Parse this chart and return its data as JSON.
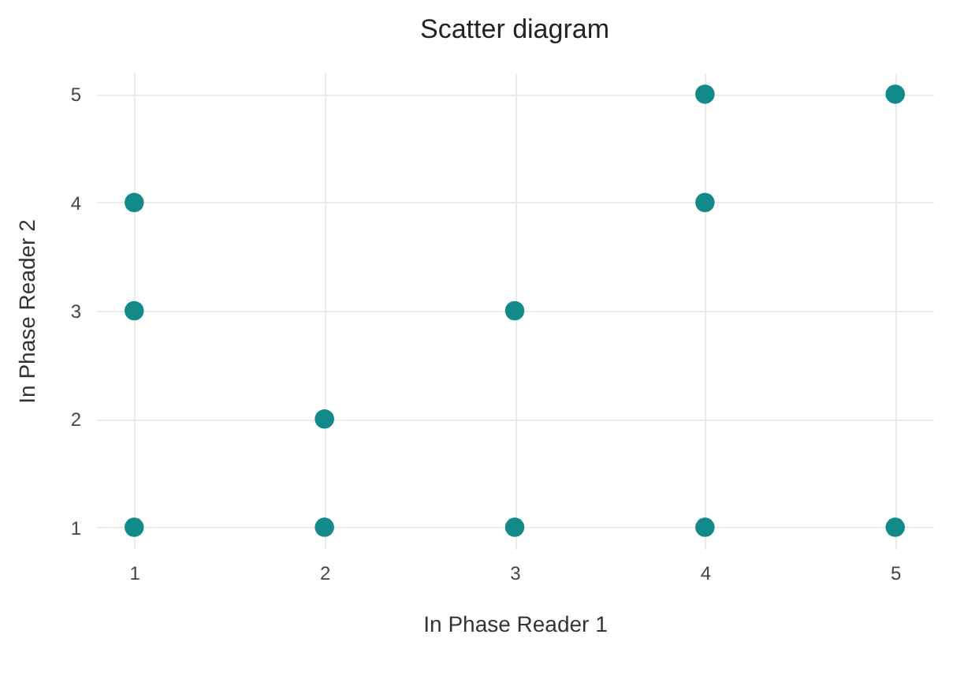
{
  "chart_data": {
    "type": "scatter",
    "title": "Scatter diagram",
    "xlabel": "In Phase Reader 1",
    "ylabel": "In Phase Reader 2",
    "x": [
      1,
      1,
      1,
      2,
      2,
      3,
      3,
      4,
      4,
      4,
      5,
      5
    ],
    "series": [
      {
        "color": "#138a8a",
        "values": [
          1,
          3,
          4,
          1,
          2,
          1,
          3,
          1,
          4,
          5,
          1,
          5
        ]
      }
    ],
    "xlim": [
      0.8,
      5.2
    ],
    "ylim": [
      0.8,
      5.2
    ],
    "xticks": [
      1,
      2,
      3,
      4,
      5
    ],
    "yticks": [
      1,
      2,
      3,
      4,
      5
    ],
    "grid": true,
    "marker": "circle"
  }
}
